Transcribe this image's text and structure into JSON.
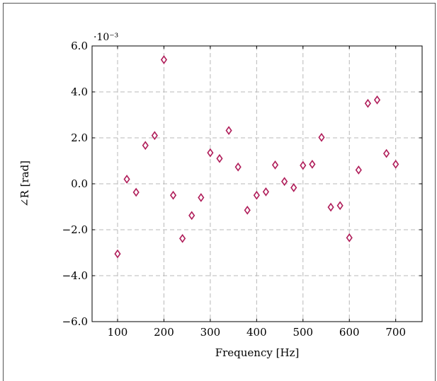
{
  "chart_data": {
    "type": "scatter",
    "title": "",
    "xlabel": "Frequency [Hz]",
    "ylabel": "∠R [rad]",
    "y_scale_label": "·10⁻³",
    "xlim": [
      45,
      757
    ],
    "ylim": [
      -6.0,
      6.0
    ],
    "xticks": [
      100,
      200,
      300,
      400,
      500,
      600,
      700
    ],
    "xtick_labels": [
      "100",
      "200",
      "300",
      "400",
      "500",
      "600",
      "700"
    ],
    "yticks": [
      -6.0,
      -4.0,
      -2.0,
      0.0,
      2.0,
      4.0,
      6.0
    ],
    "ytick_labels": [
      "−6.0",
      "−4.0",
      "−2.0",
      "0.0",
      "2.0",
      "4.0",
      "6.0"
    ],
    "grid": true,
    "marker": "diamond",
    "marker_color": "#b01e5a",
    "series": [
      {
        "x": [
          100,
          120,
          140,
          160,
          180,
          200,
          220,
          240,
          260,
          280,
          300,
          320,
          340,
          360,
          380,
          400,
          420,
          440,
          460,
          480,
          500,
          520,
          540,
          560,
          580,
          600,
          620,
          640,
          660,
          680,
          700
        ],
        "y": [
          -3.05,
          0.2,
          -0.37,
          1.67,
          2.1,
          5.4,
          -0.5,
          -2.38,
          -1.38,
          -0.6,
          1.35,
          1.1,
          2.32,
          0.73,
          -1.15,
          -0.5,
          -0.35,
          0.82,
          0.1,
          -0.17,
          0.8,
          0.85,
          2.02,
          -1.02,
          -0.95,
          -2.35,
          0.6,
          3.5,
          3.65,
          1.32,
          0.85
        ]
      }
    ]
  }
}
